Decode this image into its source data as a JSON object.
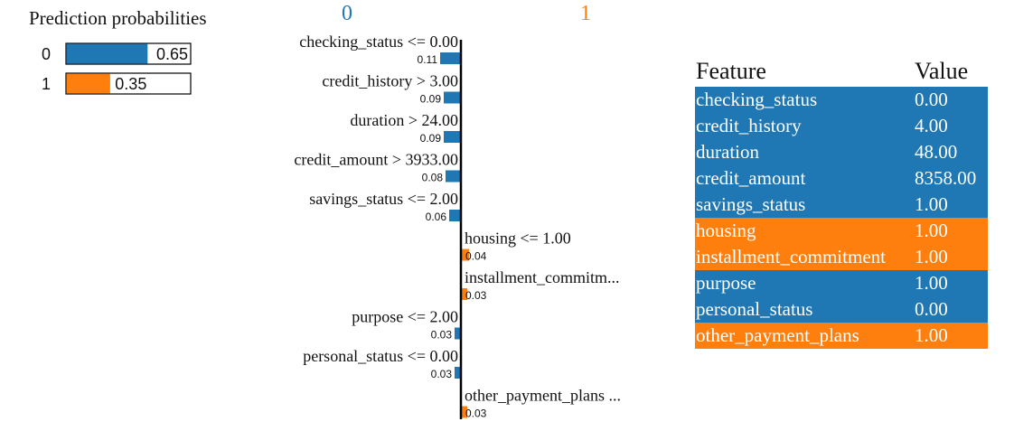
{
  "chart_data": [
    {
      "type": "bar",
      "title": "Prediction probabilities",
      "categories": [
        "0",
        "1"
      ],
      "values": [
        0.65,
        0.35
      ],
      "value_labels": [
        "0.65",
        "0.35"
      ],
      "xlim": [
        0,
        1
      ],
      "colors": [
        "#1f77b4",
        "#ff7f0e"
      ]
    },
    {
      "type": "bar",
      "class_labels": [
        "0",
        "1"
      ],
      "class_colors": [
        "#1f77b4",
        "#ff7f0e"
      ],
      "features": [
        {
          "label": "checking_status <= 0.00",
          "weight": 0.11,
          "weight_label": "0.11",
          "class": "0"
        },
        {
          "label": "credit_history > 3.00",
          "weight": 0.09,
          "weight_label": "0.09",
          "class": "0"
        },
        {
          "label": "duration > 24.00",
          "weight": 0.09,
          "weight_label": "0.09",
          "class": "0"
        },
        {
          "label": "credit_amount > 3933.00",
          "weight": 0.08,
          "weight_label": "0.08",
          "class": "0"
        },
        {
          "label": "savings_status <= 2.00",
          "weight": 0.06,
          "weight_label": "0.06",
          "class": "0"
        },
        {
          "label": "housing <= 1.00",
          "weight": 0.04,
          "weight_label": "0.04",
          "class": "1"
        },
        {
          "label": "installment_commitm...",
          "weight": 0.03,
          "weight_label": "0.03",
          "class": "1"
        },
        {
          "label": "purpose <= 2.00",
          "weight": 0.03,
          "weight_label": "0.03",
          "class": "0"
        },
        {
          "label": "personal_status <= 0.00",
          "weight": 0.03,
          "weight_label": "0.03",
          "class": "0"
        },
        {
          "label": "other_payment_plans ...",
          "weight": 0.03,
          "weight_label": "0.03",
          "class": "1"
        }
      ]
    },
    {
      "type": "table",
      "columns": [
        "Feature",
        "Value"
      ],
      "rows": [
        {
          "feature": "checking_status",
          "value": "0.00",
          "class": "0"
        },
        {
          "feature": "credit_history",
          "value": "4.00",
          "class": "0"
        },
        {
          "feature": "duration",
          "value": "48.00",
          "class": "0"
        },
        {
          "feature": "credit_amount",
          "value": "8358.00",
          "class": "0"
        },
        {
          "feature": "savings_status",
          "value": "1.00",
          "class": "0"
        },
        {
          "feature": "housing",
          "value": "1.00",
          "class": "1"
        },
        {
          "feature": "installment_commitment",
          "value": "1.00",
          "class": "1"
        },
        {
          "feature": "purpose",
          "value": "1.00",
          "class": "0"
        },
        {
          "feature": "personal_status",
          "value": "0.00",
          "class": "0"
        },
        {
          "feature": "other_payment_plans",
          "value": "1.00",
          "class": "1"
        }
      ]
    }
  ]
}
